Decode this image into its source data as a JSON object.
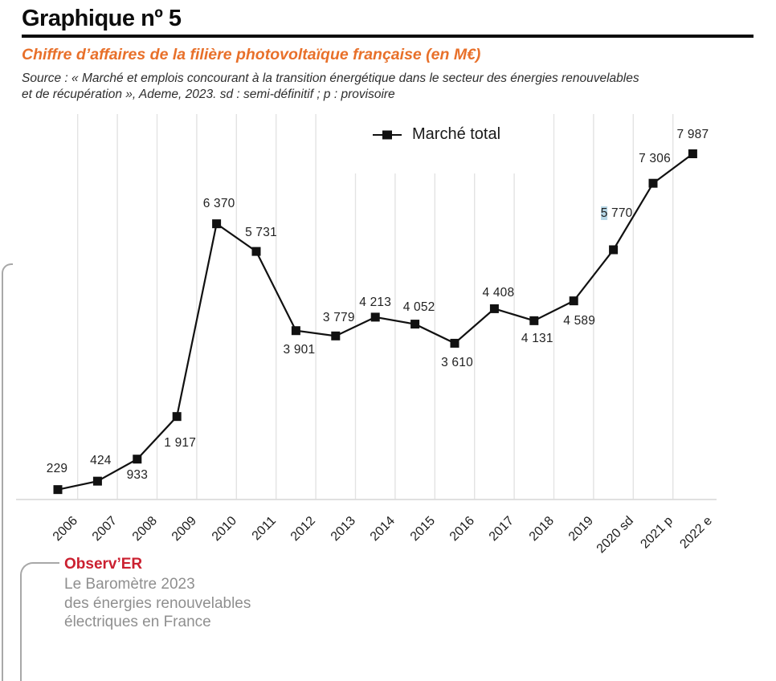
{
  "page": {
    "title": "Graphique nº 5",
    "subtitle": "Chiffre d’affaires de la filière photovoltaïque française (en M€)",
    "source_line1": "Source : « Marché et emplois concourant à la transition énergétique dans le secteur des énergies renouvelables",
    "source_line2": "et de récupération », Ademe, 2023. sd : semi-définitif ; p : provisoire"
  },
  "chart_data": {
    "type": "line",
    "title": "Chiffre d’affaires de la filière photovoltaïque française (en M€)",
    "legend": {
      "label": "Marché total",
      "marker": "black-square-on-line",
      "position": "top-center"
    },
    "grid": "vertical-only",
    "ylim": [
      0,
      8900
    ],
    "categories": [
      "2006",
      "2007",
      "2008",
      "2009",
      "2010",
      "2011",
      "2012",
      "2013",
      "2014",
      "2015",
      "2016",
      "2017",
      "2018",
      "2019",
      "2020 sd",
      "2021 p",
      "2022 e"
    ],
    "series": [
      {
        "name": "Marché total",
        "values": [
          229,
          424,
          933,
          1917,
          6370,
          5731,
          3901,
          3779,
          4213,
          4052,
          3610,
          4408,
          4131,
          4589,
          5770,
          7306,
          7987
        ]
      }
    ],
    "point_labels": [
      "229",
      "424",
      "933",
      "1 917",
      "6 370",
      "5 731",
      "3 901",
      "3 779",
      "4 213",
      "4 052",
      "3 610",
      "4 408",
      "4 131",
      "4 589",
      "5 770",
      "7 306",
      "7 987"
    ],
    "annotations": {
      "highlighted_label_index": 14,
      "highlight_note": "first character of the 5 770 label has a light-blue selection highlight"
    }
  },
  "footer": {
    "brand": "Observ’ER",
    "line1": "Le Baromètre 2023",
    "line2": "des énergies renouvelables",
    "line3": "électriques en France"
  },
  "colors": {
    "subtitle_orange": "#e8702a",
    "brand_red": "#cb2030",
    "series_black": "#111111",
    "grid_gray": "#e3e3e3",
    "axis_gray": "#dcdcdc",
    "footer_gray": "#8f8f8f",
    "bracket_gray": "#a8a8a8",
    "highlight_blue": "#b5d6e6"
  }
}
